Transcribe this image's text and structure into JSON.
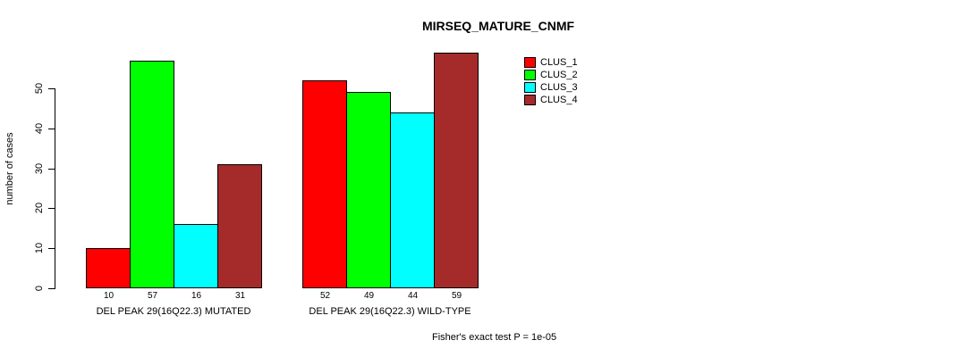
{
  "chart_data": {
    "type": "bar",
    "title": "MIRSEQ_MATURE_CNMF",
    "ylabel": "number of cases",
    "xlabel": "",
    "yticks": [
      0,
      10,
      20,
      30,
      40,
      50
    ],
    "ylim": [
      0,
      59
    ],
    "grid": false,
    "legend_position": "upper-right",
    "bar_value_labels": true,
    "categories": [
      "DEL PEAK 29(16Q22.3) MUTATED",
      "DEL PEAK 29(16Q22.3) WILD-TYPE"
    ],
    "series": [
      {
        "name": "CLUS_1",
        "color": "#FF0000",
        "values": [
          10,
          52
        ]
      },
      {
        "name": "CLUS_2",
        "color": "#00FF00",
        "values": [
          57,
          49
        ]
      },
      {
        "name": "CLUS_3",
        "color": "#00FFFF",
        "values": [
          16,
          44
        ]
      },
      {
        "name": "CLUS_4",
        "color": "#A52A2A",
        "values": [
          31,
          59
        ]
      }
    ],
    "annotation": "Fisher's exact test P = 1e-05"
  }
}
